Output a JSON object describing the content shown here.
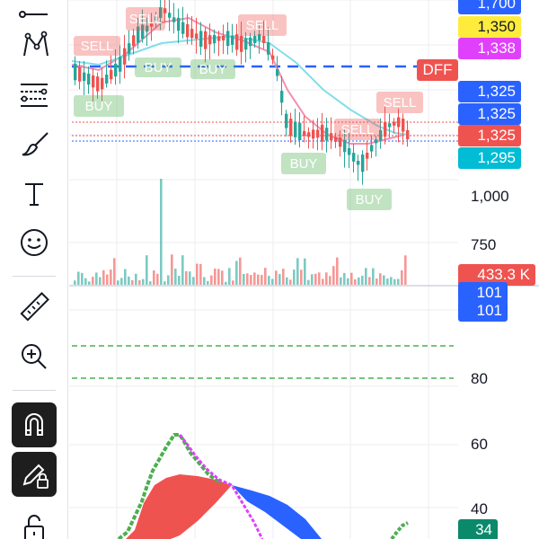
{
  "toolbar": {
    "tools": [
      "trend-line",
      "pattern",
      "fib-retracement",
      "brush",
      "text",
      "emoji",
      "measure",
      "zoom-in",
      "magnet",
      "lock-drawings",
      "unlock"
    ]
  },
  "chart": {
    "markers": {
      "sell": "SELL",
      "buy": "BUY"
    },
    "price_axis": {
      "tags": {
        "top": "1,700",
        "yellow": "1,350",
        "purple": "1,338",
        "dff": "DFF",
        "blue1": "1,325",
        "blue2": "1,325",
        "red": "1,325",
        "teal": "1,295",
        "volume": "433.3 K"
      },
      "levels": {
        "l1000": "1,000",
        "l750": "750"
      }
    },
    "indicator_axis": {
      "tags": {
        "top": "101",
        "main": "101",
        "bottom": "34"
      },
      "levels": {
        "l80": "80",
        "l60": "60",
        "l40": "40"
      }
    },
    "colors": {
      "up": "#26a69a",
      "down": "#ef5350",
      "blue": "#2962ff",
      "yellow": "#ffeb3b",
      "purple": "#e040fb",
      "teal": "#00bcd4",
      "green": "#4caf50",
      "cyan_ma": "#80deea",
      "pink_ma": "#f48fb1"
    }
  }
}
